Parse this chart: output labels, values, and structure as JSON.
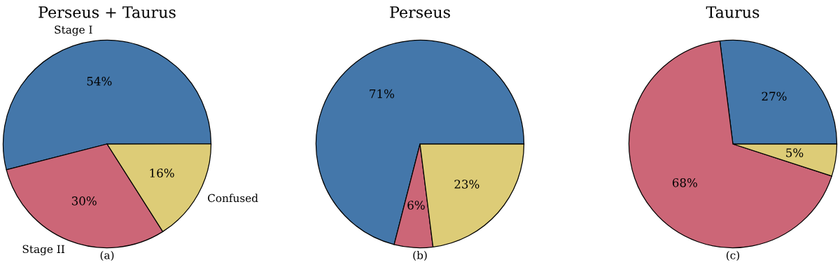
{
  "chart_data": [
    {
      "type": "pie",
      "title": "Perseus + Taurus",
      "categories": [
        "Stage I",
        "Stage II",
        "Confused"
      ],
      "values": [
        54,
        30,
        16
      ],
      "colors": [
        "#4477aa",
        "#cc6677",
        "#ddcc77"
      ],
      "value_labels": [
        "54%",
        "30%",
        "16%"
      ],
      "annotations": [
        "(a)"
      ]
    },
    {
      "type": "pie",
      "title": "Perseus",
      "categories": [
        null,
        null,
        null
      ],
      "values": [
        71,
        6,
        23
      ],
      "colors": [
        "#4477aa",
        "#cc6677",
        "#ddcc77"
      ],
      "value_labels": [
        "71%",
        "6%",
        "23%"
      ],
      "annotations": [
        "(b)"
      ]
    },
    {
      "type": "pie",
      "title": "Taurus",
      "categories": [
        null,
        null,
        null
      ],
      "values": [
        27,
        68,
        5
      ],
      "colors": [
        "#4477aa",
        "#cc6677",
        "#ddcc77"
      ],
      "value_labels": [
        "27%",
        "68%",
        "5%"
      ],
      "annotations": [
        "(c)"
      ]
    }
  ]
}
